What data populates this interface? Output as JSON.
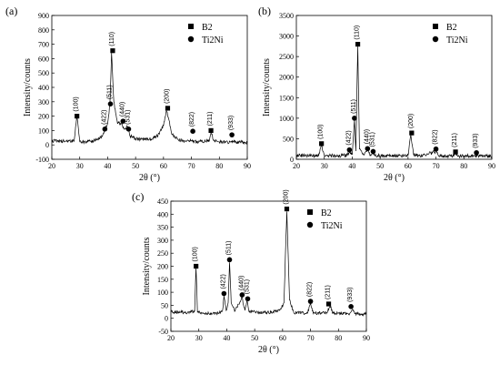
{
  "chart_data": [
    {
      "panel": "(a)",
      "type": "line",
      "xlabel": "2θ (°)",
      "ylabel": "Intensity/counts",
      "xlim": [
        20,
        90
      ],
      "ylim": [
        -100,
        900
      ],
      "xticks": [
        20,
        30,
        40,
        50,
        60,
        70,
        80,
        90
      ],
      "yticks": [
        -100,
        0,
        100,
        200,
        300,
        400,
        500,
        600,
        700,
        800,
        900
      ],
      "legend_position": "top-right",
      "legend": [
        {
          "marker": "square",
          "label": "B2"
        },
        {
          "marker": "circle",
          "label": "Ti2Ni"
        }
      ],
      "baseline": [
        [
          20,
          28
        ],
        [
          25,
          27
        ],
        [
          28,
          29
        ],
        [
          29,
          200
        ],
        [
          30,
          24
        ],
        [
          32,
          22
        ],
        [
          34,
          24
        ],
        [
          36,
          35
        ],
        [
          38,
          58
        ],
        [
          39,
          110
        ],
        [
          40,
          150
        ],
        [
          40.8,
          280
        ],
        [
          41.4,
          640
        ],
        [
          42.2,
          300
        ],
        [
          43.5,
          150
        ],
        [
          45,
          150
        ],
        [
          46,
          110
        ],
        [
          47,
          130
        ],
        [
          48,
          62
        ],
        [
          50,
          42
        ],
        [
          55,
          38
        ],
        [
          58,
          62
        ],
        [
          60,
          135
        ],
        [
          61,
          240
        ],
        [
          62,
          170
        ],
        [
          63,
          72
        ],
        [
          65,
          40
        ],
        [
          68,
          22
        ],
        [
          70,
          30
        ],
        [
          71,
          22
        ],
        [
          75,
          24
        ],
        [
          76.5,
          35
        ],
        [
          77,
          85
        ],
        [
          78,
          30
        ],
        [
          80,
          20
        ],
        [
          84,
          20
        ],
        [
          85,
          25
        ],
        [
          86,
          20
        ],
        [
          90,
          18
        ]
      ],
      "peaks": [
        {
          "x": 29,
          "y": 200,
          "phase": "B2",
          "hkl": "(100)"
        },
        {
          "x": 39,
          "y": 110,
          "phase": "Ti2Ni",
          "hkl": "(422)"
        },
        {
          "x": 41,
          "y": 285,
          "phase": "Ti2Ni",
          "hkl": "(511)"
        },
        {
          "x": 41.8,
          "y": 655,
          "phase": "B2",
          "hkl": "(110)"
        },
        {
          "x": 45.5,
          "y": 165,
          "phase": "Ti2Ni",
          "hkl": "(440)"
        },
        {
          "x": 47.5,
          "y": 110,
          "phase": "Ti2Ni",
          "hkl": "(531)"
        },
        {
          "x": 61.5,
          "y": 255,
          "phase": "B2",
          "hkl": "(200)"
        },
        {
          "x": 70.5,
          "y": 95,
          "phase": "Ti2Ni",
          "hkl": "(822)"
        },
        {
          "x": 77,
          "y": 100,
          "phase": "B2",
          "hkl": "(211)"
        },
        {
          "x": 84.5,
          "y": 70,
          "phase": "Ti2Ni",
          "hkl": "(933)"
        }
      ]
    },
    {
      "panel": "(b)",
      "type": "line",
      "xlabel": "2θ (°)",
      "ylabel": "Intensity/counts",
      "xlim": [
        20,
        90
      ],
      "ylim": [
        0,
        3500
      ],
      "xticks": [
        20,
        30,
        40,
        50,
        60,
        70,
        80,
        90
      ],
      "yticks": [
        0,
        500,
        1000,
        1500,
        2000,
        2500,
        3000,
        3500
      ],
      "legend_position": "top-right",
      "legend": [
        {
          "marker": "square",
          "label": "B2"
        },
        {
          "marker": "circle",
          "label": "Ti2Ni"
        }
      ],
      "baseline": [
        [
          20,
          90
        ],
        [
          28,
          90
        ],
        [
          29,
          330
        ],
        [
          30,
          90
        ],
        [
          35,
          85
        ],
        [
          38,
          100
        ],
        [
          39,
          170
        ],
        [
          40,
          110
        ],
        [
          40.8,
          950
        ],
        [
          41.3,
          200
        ],
        [
          42,
          2750
        ],
        [
          42.6,
          250
        ],
        [
          44,
          110
        ],
        [
          45.5,
          220
        ],
        [
          46.5,
          110
        ],
        [
          47.5,
          150
        ],
        [
          48.5,
          90
        ],
        [
          55,
          80
        ],
        [
          60,
          100
        ],
        [
          61,
          600
        ],
        [
          62,
          100
        ],
        [
          65,
          80
        ],
        [
          70,
          190
        ],
        [
          71,
          80
        ],
        [
          76,
          80
        ],
        [
          77,
          140
        ],
        [
          78,
          80
        ],
        [
          84,
          80
        ],
        [
          85,
          100
        ],
        [
          86,
          80
        ],
        [
          90,
          75
        ]
      ],
      "peaks": [
        {
          "x": 29,
          "y": 380,
          "phase": "B2",
          "hkl": "(100)"
        },
        {
          "x": 39,
          "y": 230,
          "phase": "Ti2Ni",
          "hkl": "(422)"
        },
        {
          "x": 40.8,
          "y": 1000,
          "phase": "Ti2Ni",
          "hkl": "(511)"
        },
        {
          "x": 42,
          "y": 2800,
          "phase": "B2",
          "hkl": "(110)"
        },
        {
          "x": 45.5,
          "y": 260,
          "phase": "Ti2Ni",
          "hkl": "(440)"
        },
        {
          "x": 47.5,
          "y": 190,
          "phase": "Ti2Ni",
          "hkl": "(531)"
        },
        {
          "x": 61.3,
          "y": 640,
          "phase": "B2",
          "hkl": "(200)"
        },
        {
          "x": 70,
          "y": 250,
          "phase": "Ti2Ni",
          "hkl": "(822)"
        },
        {
          "x": 77,
          "y": 180,
          "phase": "B2",
          "hkl": "(211)"
        },
        {
          "x": 84.5,
          "y": 160,
          "phase": "Ti2Ni",
          "hkl": "(933)"
        }
      ]
    },
    {
      "panel": "(c)",
      "type": "line",
      "xlabel": "2θ (°)",
      "ylabel": "Intensity/counts",
      "xlim": [
        20,
        90
      ],
      "ylim": [
        -50,
        450
      ],
      "xticks": [
        20,
        30,
        40,
        50,
        60,
        70,
        80,
        90
      ],
      "yticks": [
        -50,
        0,
        50,
        100,
        150,
        200,
        250,
        300,
        350,
        400,
        450
      ],
      "legend_position": "top-right",
      "legend": [
        {
          "marker": "square",
          "label": "B2"
        },
        {
          "marker": "circle",
          "label": "Ti2Ni"
        }
      ],
      "baseline": [
        [
          20,
          25
        ],
        [
          26,
          22
        ],
        [
          28.5,
          28
        ],
        [
          29,
          195
        ],
        [
          29.5,
          22
        ],
        [
          33,
          18
        ],
        [
          37,
          20
        ],
        [
          38.5,
          30
        ],
        [
          39,
          85
        ],
        [
          39.8,
          30
        ],
        [
          40.5,
          60
        ],
        [
          41,
          215
        ],
        [
          41.6,
          60
        ],
        [
          43,
          28
        ],
        [
          45.5,
          80
        ],
        [
          46.5,
          30
        ],
        [
          47.3,
          65
        ],
        [
          48,
          25
        ],
        [
          55,
          22
        ],
        [
          59,
          30
        ],
        [
          60.5,
          60
        ],
        [
          61.5,
          410
        ],
        [
          62.5,
          70
        ],
        [
          64,
          22
        ],
        [
          69,
          20
        ],
        [
          70,
          60
        ],
        [
          71,
          18
        ],
        [
          76,
          22
        ],
        [
          77,
          48
        ],
        [
          78,
          20
        ],
        [
          84,
          18
        ],
        [
          85,
          35
        ],
        [
          86,
          18
        ],
        [
          90,
          16
        ]
      ],
      "peaks": [
        {
          "x": 29,
          "y": 200,
          "phase": "B2",
          "hkl": "(100)"
        },
        {
          "x": 39,
          "y": 95,
          "phase": "Ti2Ni",
          "hkl": "(422)"
        },
        {
          "x": 41,
          "y": 225,
          "phase": "Ti2Ni",
          "hkl": "(511)"
        },
        {
          "x": 45.5,
          "y": 90,
          "phase": "Ti2Ni",
          "hkl": "(440)"
        },
        {
          "x": 47.5,
          "y": 75,
          "phase": "Ti2Ni",
          "hkl": "(531)"
        },
        {
          "x": 61.5,
          "y": 420,
          "phase": "B2",
          "hkl": "(200)"
        },
        {
          "x": 70,
          "y": 65,
          "phase": "Ti2Ni",
          "hkl": "(822)"
        },
        {
          "x": 76.5,
          "y": 55,
          "phase": "B2",
          "hkl": "(211)"
        },
        {
          "x": 84.5,
          "y": 45,
          "phase": "Ti2Ni",
          "hkl": "(933)"
        }
      ]
    }
  ]
}
